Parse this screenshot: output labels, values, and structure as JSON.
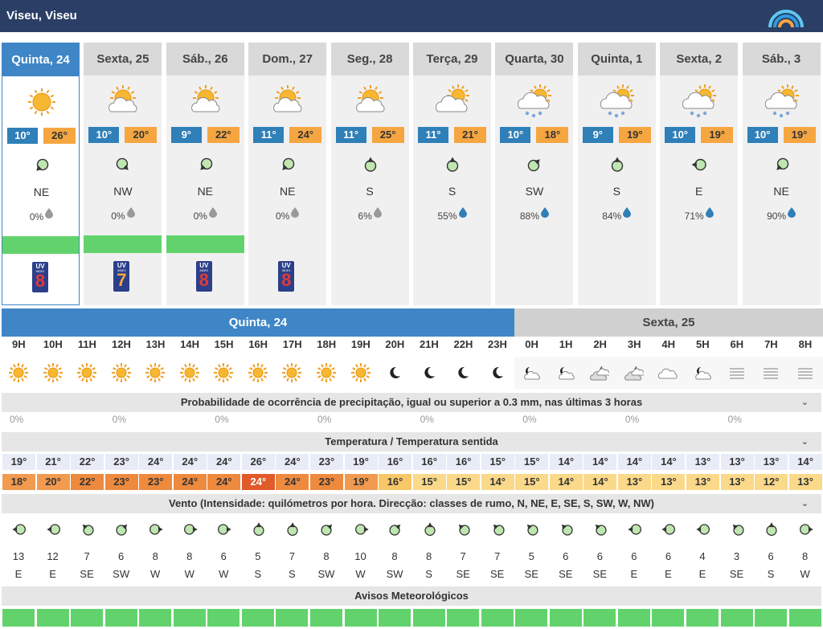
{
  "location": "Viseu, Viseu",
  "days": [
    {
      "label": "Quinta, 24",
      "icon": "sun",
      "tmin": "10°",
      "tmax": "26°",
      "wind": "NE",
      "rot": 225,
      "precip": "0%",
      "drop": "grey",
      "warn": true,
      "uv": "8",
      "selected": true
    },
    {
      "label": "Sexta, 25",
      "icon": "sun-cloud",
      "tmin": "10°",
      "tmax": "20°",
      "wind": "NW",
      "rot": 135,
      "precip": "0%",
      "drop": "grey",
      "warn": true,
      "uv": "7"
    },
    {
      "label": "Sáb., 26",
      "icon": "sun-cloud",
      "tmin": "9°",
      "tmax": "22°",
      "wind": "NE",
      "rot": 225,
      "precip": "0%",
      "drop": "grey",
      "warn": true,
      "uv": "8"
    },
    {
      "label": "Dom., 27",
      "icon": "sun-cloud",
      "tmin": "11°",
      "tmax": "24°",
      "wind": "NE",
      "rot": 225,
      "precip": "0%",
      "drop": "grey",
      "warn": false,
      "uv": "8"
    },
    {
      "label": "Seg., 28",
      "icon": "sun-cloud",
      "tmin": "11°",
      "tmax": "25°",
      "wind": "S",
      "rot": 0,
      "precip": "6%",
      "drop": "grey",
      "warn": false,
      "uv": ""
    },
    {
      "label": "Terça, 29",
      "icon": "cloud-sun",
      "tmin": "11°",
      "tmax": "21°",
      "wind": "S",
      "rot": 0,
      "precip": "55%",
      "drop": "blue",
      "warn": false,
      "uv": ""
    },
    {
      "label": "Quarta, 30",
      "icon": "rain",
      "tmin": "10°",
      "tmax": "18°",
      "wind": "SW",
      "rot": 45,
      "precip": "88%",
      "drop": "blue",
      "warn": false,
      "uv": ""
    },
    {
      "label": "Quinta, 1",
      "icon": "rain",
      "tmin": "9°",
      "tmax": "19°",
      "wind": "S",
      "rot": 0,
      "precip": "84%",
      "drop": "blue",
      "warn": false,
      "uv": ""
    },
    {
      "label": "Sexta, 2",
      "icon": "rain",
      "tmin": "10°",
      "tmax": "19°",
      "wind": "E",
      "rot": 270,
      "precip": "71%",
      "drop": "blue",
      "warn": false,
      "uv": ""
    },
    {
      "label": "Sáb., 3",
      "icon": "rain",
      "tmin": "10°",
      "tmax": "19°",
      "wind": "NE",
      "rot": 225,
      "precip": "90%",
      "drop": "blue",
      "warn": false,
      "uv": ""
    }
  ],
  "uv_label": "UV",
  "uv_sub": "INDEX",
  "hourly": {
    "day1_label": "Quinta, 24",
    "day2_label": "Sexta, 25",
    "hours": [
      "9H",
      "10H",
      "11H",
      "12H",
      "13H",
      "14H",
      "15H",
      "16H",
      "17H",
      "18H",
      "19H",
      "20H",
      "21H",
      "22H",
      "23H",
      "0H",
      "1H",
      "2H",
      "3H",
      "4H",
      "5H",
      "6H",
      "7H",
      "8H"
    ],
    "icons": [
      "sun",
      "sun",
      "sun",
      "sun",
      "sun",
      "sun",
      "sun",
      "sun",
      "sun",
      "sun",
      "sun",
      "moon",
      "moon",
      "moon",
      "moon",
      "moon-cloud",
      "moon-cloud",
      "moon-cloud2",
      "moon-cloud2",
      "cloud",
      "moon-cloud",
      "fog",
      "fog",
      "fog"
    ],
    "precip_title": "Probabilidade de ocorrência de precipitação, igual ou superior a 0.3 mm, nas últimas 3 horas",
    "precip": [
      "0%",
      "",
      "",
      "0%",
      "",
      "",
      "0%",
      "",
      "",
      "0%",
      "",
      "",
      "0%",
      "",
      "",
      "0%",
      "",
      "",
      "0%",
      "",
      "",
      "0%",
      "",
      ""
    ],
    "temp_title": "Temperatura / Temperatura sentida",
    "temp": [
      "19°",
      "21°",
      "22°",
      "23°",
      "24°",
      "24°",
      "24°",
      "26°",
      "24°",
      "23°",
      "19°",
      "16°",
      "16°",
      "16°",
      "15°",
      "15°",
      "14°",
      "14°",
      "14°",
      "14°",
      "13°",
      "13°",
      "13°",
      "14°"
    ],
    "feel": [
      "18°",
      "20°",
      "22°",
      "23°",
      "23°",
      "24°",
      "24°",
      "24°",
      "24°",
      "23°",
      "19°",
      "16°",
      "15°",
      "15°",
      "14°",
      "15°",
      "14°",
      "14°",
      "13°",
      "13°",
      "13°",
      "13°",
      "12°",
      "13°"
    ],
    "wind_title": "Vento (Intensidade: quilómetros por hora. Direcção: classes de rumo, N, NE, E, SE, S, SW, W, NW)",
    "wind_speed": [
      "13",
      "12",
      "7",
      "6",
      "8",
      "8",
      "6",
      "5",
      "7",
      "8",
      "10",
      "8",
      "8",
      "7",
      "7",
      "5",
      "6",
      "6",
      "6",
      "6",
      "4",
      "3",
      "6",
      "8"
    ],
    "wind_dir": [
      "E",
      "E",
      "SE",
      "SW",
      "W",
      "W",
      "W",
      "S",
      "S",
      "SW",
      "W",
      "SW",
      "S",
      "SE",
      "SE",
      "SE",
      "SE",
      "SE",
      "E",
      "E",
      "E",
      "SE",
      "S",
      "W"
    ],
    "warn_title": "Avisos Meteorológicos"
  },
  "colors": {
    "header": "#2b3f66",
    "selected": "#3f86c7",
    "tmin": "#2f7fb8",
    "tmax": "#f5a640",
    "warn_green": "#62d36c"
  }
}
